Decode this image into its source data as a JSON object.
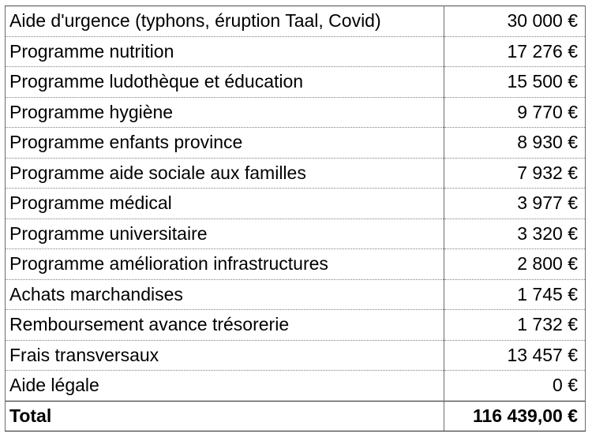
{
  "table": {
    "rows": [
      {
        "label": "Aide d'urgence (typhons, éruption Taal, Covid)",
        "amount": "30 000 €"
      },
      {
        "label": "Programme nutrition",
        "amount": "17 276 €"
      },
      {
        "label": "Programme ludothèque et éducation",
        "amount": "15 500 €"
      },
      {
        "label": "Programme hygiène",
        "amount": "9 770 €"
      },
      {
        "label": "Programme enfants province",
        "amount": "8 930 €"
      },
      {
        "label": "Programme aide sociale aux familles",
        "amount": "7 932 €"
      },
      {
        "label": "Programme médical",
        "amount": "3 977 €"
      },
      {
        "label": "Programme universitaire",
        "amount": "3 320 €"
      },
      {
        "label": "Programme amélioration infrastructures",
        "amount": "2 800 €"
      },
      {
        "label": "Achats marchandises",
        "amount": "1 745 €"
      },
      {
        "label": "Remboursement avance trésorerie",
        "amount": "1 732 €"
      },
      {
        "label": "Frais transversaux",
        "amount": "13 457 €"
      },
      {
        "label": "Aide légale",
        "amount": "0 €"
      }
    ],
    "total": {
      "label": "Total",
      "amount": "116 439,00 €"
    }
  }
}
